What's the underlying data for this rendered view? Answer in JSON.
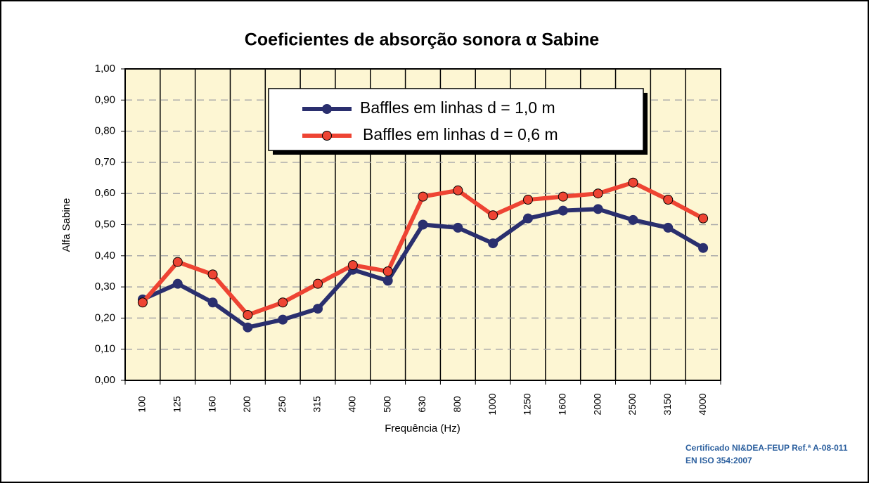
{
  "chart_data": {
    "type": "line",
    "title": "Coeficientes de absorção sonora α Sabine",
    "x_label": "Frequência (Hz)",
    "y_label": "Alfa Sabine",
    "notes": [
      "Certificado NI&DEA-FEUP Ref.ª A-08-011",
      "EN ISO 354:2007"
    ],
    "categories": [
      "100",
      "125",
      "160",
      "200",
      "250",
      "315",
      "400",
      "500",
      "630",
      "800",
      "1000",
      "1250",
      "1600",
      "2000",
      "2500",
      "3150",
      "4000"
    ],
    "series": [
      {
        "name": "Baffles em linhas d = 1,0 m",
        "color": "#2a2f6e",
        "values": [
          0.26,
          0.31,
          0.25,
          0.17,
          0.195,
          0.23,
          0.355,
          0.32,
          0.5,
          0.49,
          0.44,
          0.52,
          0.545,
          0.55,
          0.515,
          0.49,
          0.425
        ]
      },
      {
        "name": "Baffles em linhas d = 0,6 m",
        "color": "#ee4433",
        "values": [
          0.25,
          0.38,
          0.34,
          0.21,
          0.25,
          0.31,
          0.37,
          0.35,
          0.59,
          0.61,
          0.53,
          0.58,
          0.59,
          0.6,
          0.635,
          0.58,
          0.52
        ]
      }
    ],
    "ylim": [
      0,
      1
    ],
    "yticks": [
      {
        "value": 0,
        "label": "0,00"
      },
      {
        "value": 0.1,
        "label": "0,10"
      },
      {
        "value": 0.2,
        "label": "0,20"
      },
      {
        "value": 0.3,
        "label": "0,30"
      },
      {
        "value": 0.4,
        "label": "0,40"
      },
      {
        "value": 0.5,
        "label": "0,50"
      },
      {
        "value": 0.6,
        "label": "0,60"
      },
      {
        "value": 0.7,
        "label": "0,70"
      },
      {
        "value": 0.8,
        "label": "0,80"
      },
      {
        "value": 0.9,
        "label": "0,90"
      },
      {
        "value": 1,
        "label": "1,00"
      }
    ],
    "grid": true
  }
}
